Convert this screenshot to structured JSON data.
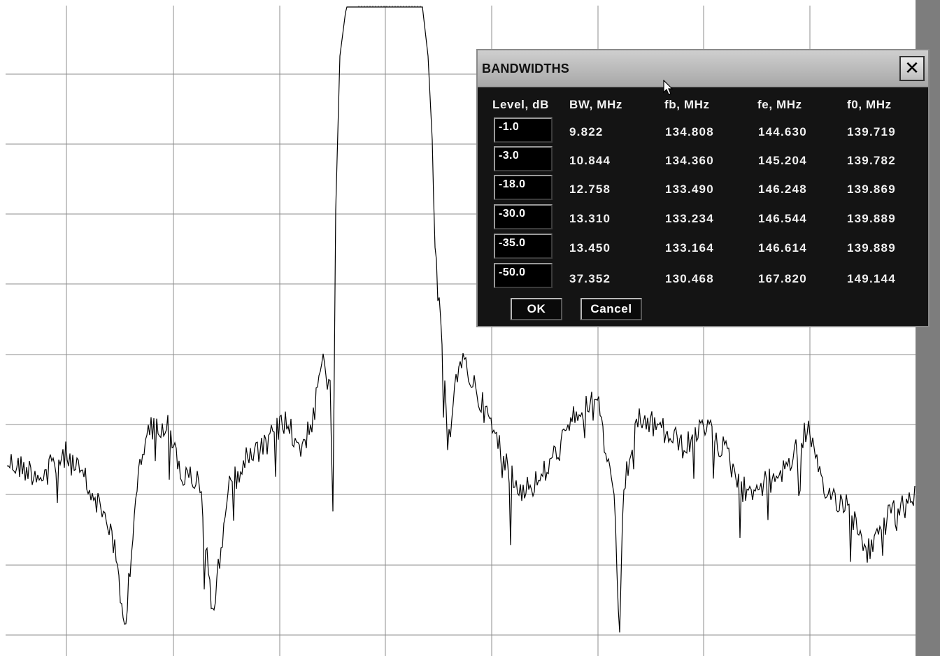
{
  "dialog": {
    "title": "BANDWIDTHS",
    "close_label": "✕",
    "headers": {
      "level": "Level, dB",
      "bw": "BW, MHz",
      "fb": "fb, MHz",
      "fe": "fe, MHz",
      "f0": "f0, MHz"
    },
    "rows": [
      {
        "level": "-1.0",
        "bw": "9.822",
        "fb": "134.808",
        "fe": "144.630",
        "f0": "139.719"
      },
      {
        "level": "-3.0",
        "bw": "10.844",
        "fb": "134.360",
        "fe": "145.204",
        "f0": "139.782"
      },
      {
        "level": "-18.0",
        "bw": "12.758",
        "fb": "133.490",
        "fe": "146.248",
        "f0": "139.869"
      },
      {
        "level": "-30.0",
        "bw": "13.310",
        "fb": "133.234",
        "fe": "146.544",
        "f0": "139.889"
      },
      {
        "level": "-35.0",
        "bw": "13.450",
        "fb": "133.164",
        "fe": "146.614",
        "f0": "139.889"
      },
      {
        "level": "-50.0",
        "bw": "37.352",
        "fb": "130.468",
        "fe": "167.820",
        "f0": "149.144"
      }
    ],
    "ok_label": "OK",
    "cancel_label": "Cancel"
  },
  "colors": {
    "background": "#ffffff",
    "grid": "#8c8c8c",
    "trace": "#000000",
    "dialog_bg": "#141414",
    "titlebar": "#bdbdbd",
    "scroll_strip": "#7d7d7d"
  }
}
